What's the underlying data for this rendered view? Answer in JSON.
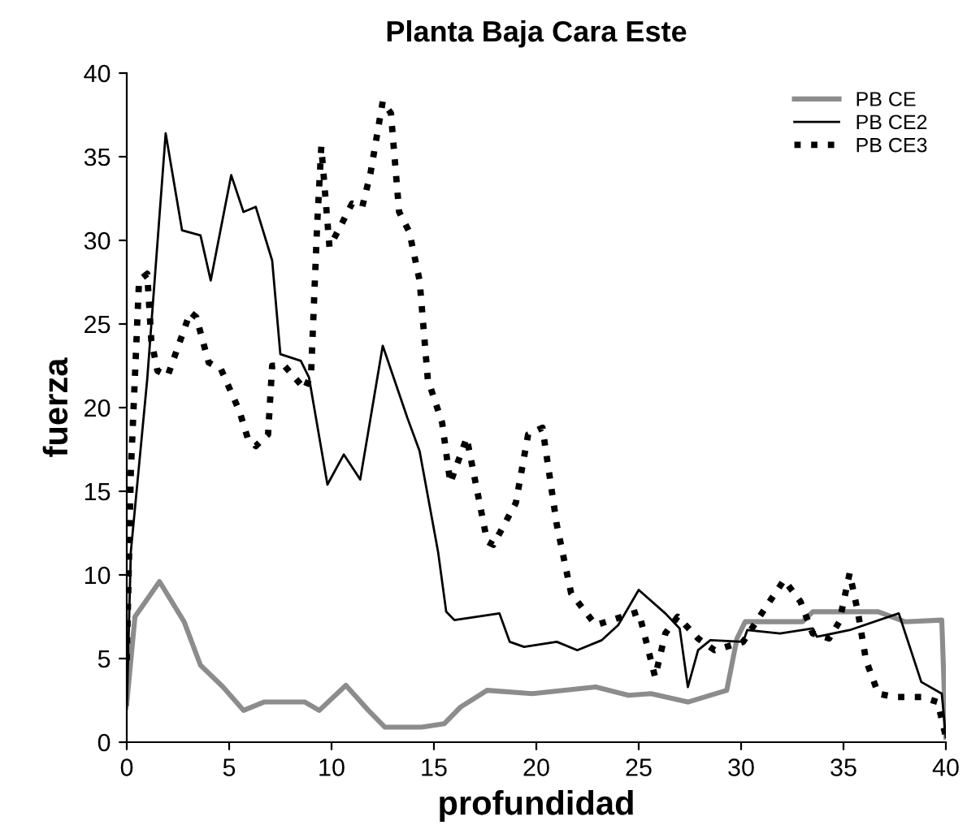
{
  "chart_data": {
    "type": "line",
    "title": "Planta Baja Cara Este",
    "xlabel": "profundidad",
    "ylabel": "fuerza",
    "xlim": [
      0,
      40
    ],
    "ylim": [
      0,
      40
    ],
    "xticks": [
      0,
      5,
      10,
      15,
      20,
      25,
      30,
      35,
      40
    ],
    "yticks": [
      0,
      5,
      10,
      15,
      20,
      25,
      30,
      35,
      40
    ],
    "grid": false,
    "legend": "top right",
    "marker": "none",
    "series": [
      {
        "name": "PB CE",
        "color": "#8c8c8c",
        "line_style": "solid",
        "x": [
          0,
          0.4,
          1.6,
          2.8,
          3.6,
          4.7,
          5.7,
          6.7,
          8.7,
          9.4,
          10.7,
          11.8,
          12.6,
          14.4,
          15.5,
          16.3,
          17.6,
          19.8,
          22.9,
          24.5,
          25.6,
          27.4,
          29.3,
          29.8,
          30.2,
          30.6,
          33,
          33.5,
          36.7,
          38,
          39.8,
          40
        ],
        "values": [
          2.3,
          7.5,
          9.6,
          7.2,
          4.6,
          3.3,
          1.9,
          2.4,
          2.4,
          1.9,
          3.4,
          1.9,
          0.9,
          0.9,
          1.1,
          2.1,
          3.1,
          2.9,
          3.3,
          2.8,
          2.9,
          2.4,
          3.1,
          6.2,
          7.2,
          7.2,
          7.2,
          7.8,
          7.8,
          7.2,
          7.3,
          0.3
        ]
      },
      {
        "name": "PB CE2",
        "color": "#000000",
        "line_style": "solid",
        "x": [
          0,
          0.2,
          1,
          1.9,
          2.7,
          3.6,
          4.1,
          5.1,
          5.7,
          6.3,
          7.1,
          7.5,
          8.5,
          8.9,
          9.8,
          10.6,
          11.4,
          12.5,
          13.7,
          14.3,
          15.2,
          15.6,
          16,
          18.2,
          18.7,
          19.4,
          21,
          22,
          23.2,
          24,
          25,
          26.3,
          27,
          27.4,
          27.9,
          28.5,
          30.1,
          30.3,
          31.9,
          33.5,
          33.7,
          35.3,
          37.7,
          38.8,
          39.8,
          40
        ],
        "values": [
          2,
          11.4,
          21.7,
          36.4,
          30.6,
          30.3,
          27.6,
          33.9,
          31.7,
          32,
          28.8,
          23.2,
          22.8,
          21.8,
          15.4,
          17.2,
          15.7,
          23.7,
          19.4,
          17.4,
          11.4,
          7.8,
          7.3,
          7.7,
          6,
          5.7,
          6,
          5.5,
          6.1,
          7,
          9.1,
          7.7,
          6.8,
          3.3,
          5.5,
          6.1,
          6,
          6.7,
          6.5,
          6.8,
          6.3,
          6.7,
          7.7,
          3.6,
          2.9,
          0.3
        ]
      },
      {
        "name": "PB CE3",
        "color": "#000000",
        "line_style": "dotted",
        "x": [
          0,
          0.2,
          0.6,
          1,
          1.2,
          1.5,
          2,
          3.1,
          3.4,
          4,
          4.6,
          5.5,
          5.9,
          6.3,
          6.9,
          7.1,
          7.7,
          8.7,
          9,
          9.3,
          9.5,
          9.9,
          10.5,
          11,
          11.5,
          11.9,
          12.5,
          12.9,
          13.3,
          13.8,
          14.3,
          14.7,
          15.4,
          15.8,
          16.6,
          17.6,
          17.9,
          19,
          19.6,
          20.3,
          21,
          21.7,
          22.9,
          24.2,
          25,
          25.8,
          26.3,
          26.9,
          27.9,
          28.7,
          30.1,
          30.9,
          32.1,
          32.9,
          33.5,
          34.3,
          34.8,
          35.3,
          35.7,
          36.1,
          36.7,
          37.5,
          38.8,
          39.6,
          40
        ],
        "values": [
          4.9,
          16.2,
          27.6,
          28,
          24,
          22.2,
          21.9,
          25.7,
          25.4,
          22.7,
          22.3,
          19.8,
          18.2,
          17.7,
          18.4,
          22.5,
          22.5,
          21.1,
          22,
          31,
          35.6,
          29.6,
          31,
          32.2,
          32,
          34,
          38.3,
          37.6,
          31.7,
          30.5,
          27.6,
          21.7,
          19.1,
          15.5,
          18.2,
          12,
          11.8,
          14.3,
          18.4,
          18.8,
          13,
          8.9,
          7,
          7.5,
          7.8,
          3.9,
          6.5,
          7.5,
          6.2,
          5.5,
          6,
          7.5,
          9.7,
          8.4,
          6.5,
          6.2,
          7.2,
          10.1,
          7.8,
          4.9,
          2.9,
          2.7,
          2.7,
          2.4,
          0.3
        ]
      }
    ]
  }
}
